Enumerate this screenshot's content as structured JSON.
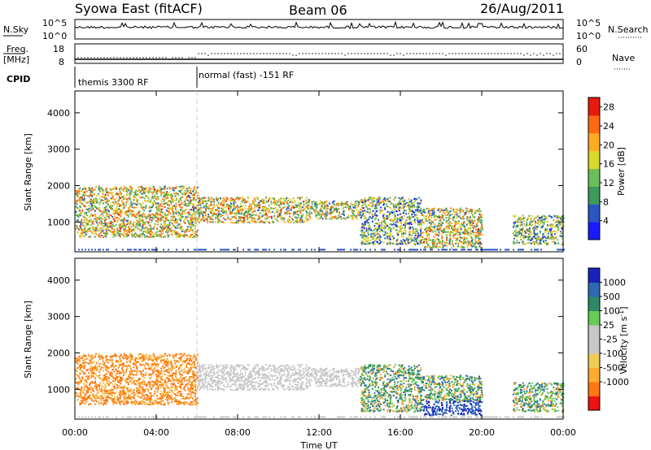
{
  "header": {
    "title": "Syowa East (fitACF)",
    "beam": "Beam 06",
    "date": "26/Aug/2011"
  },
  "strip_nsky": {
    "label": "N.Sky",
    "ticks_left": [
      "10^5",
      "10^0"
    ],
    "ticks_right": [
      "10^5",
      "10^0"
    ],
    "right_label": "N.Search"
  },
  "strip_freq": {
    "label_line1": "Freq.",
    "label_line2": "[MHz]",
    "ticks_left": [
      "18",
      "8"
    ],
    "ticks_right": [
      "60",
      "0"
    ],
    "right_label": "Nave"
  },
  "strip_cpid": {
    "label": "CPID",
    "segment1": "themis 3300 RF",
    "segment2": "normal (fast) -151 RF",
    "change_time_hours": 6.0
  },
  "colors": {
    "power_scale": [
      "#1a1aff",
      "#2a56c4",
      "#3d9a5a",
      "#6bbf5a",
      "#d9d92a",
      "#ffaa22",
      "#ff6a11",
      "#e81a0e"
    ],
    "velocity_scale": [
      "#ee1111",
      "#ff7711",
      "#ffaa33",
      "#eecc55",
      "#c8c8c8",
      "#c8c8c8",
      "#66cc55",
      "#2d8a66",
      "#2e6ab4",
      "#1a22bb"
    ]
  },
  "chart_data": [
    {
      "type": "heatmap",
      "name": "power",
      "ylabel": "Slant Range [km]",
      "xlabel": "",
      "xlim_hours": [
        0,
        24
      ],
      "ylim_km": [
        180,
        4600
      ],
      "yticks": [
        "4000",
        "3000",
        "2000",
        "1000"
      ],
      "ytick_values": [
        4000,
        3000,
        2000,
        1000
      ],
      "colorbar_label": "Power [dB]",
      "colorbar_ticks": [
        "28",
        "24",
        "20",
        "16",
        "12",
        "8",
        "4"
      ],
      "colorbar_tick_values": [
        28,
        24,
        20,
        16,
        12,
        8,
        4
      ],
      "colorbar_range": [
        0,
        30
      ],
      "regions": [
        {
          "t0": 0.0,
          "t1": 6.0,
          "r0": 600,
          "r1": 2000,
          "level": 0.55
        },
        {
          "t0": 6.0,
          "t1": 11.5,
          "r0": 1000,
          "r1": 1700,
          "level": 0.55
        },
        {
          "t0": 11.5,
          "t1": 14.0,
          "r0": 1100,
          "r1": 1600,
          "level": 0.5
        },
        {
          "t0": 14.0,
          "t1": 17.0,
          "r0": 400,
          "r1": 1700,
          "level": 0.4
        },
        {
          "t0": 17.0,
          "t1": 20.0,
          "r0": 300,
          "r1": 1400,
          "level": 0.55
        },
        {
          "t0": 21.5,
          "t1": 24.0,
          "r0": 400,
          "r1": 1200,
          "level": 0.4
        }
      ]
    },
    {
      "type": "heatmap",
      "name": "velocity",
      "ylabel": "Slant Range [km]",
      "xlabel": "Time UT",
      "xlim_hours": [
        0,
        24
      ],
      "ylim_km": [
        180,
        4600
      ],
      "yticks": [
        "4000",
        "3000",
        "2000",
        "1000"
      ],
      "ytick_values": [
        4000,
        3000,
        2000,
        1000
      ],
      "colorbar_label": "Velocity [m s",
      "colorbar_label_sup": "-1",
      "colorbar_label_end": "]",
      "colorbar_ticks": [
        "1000",
        "500",
        "100",
        "25",
        "-25",
        "-100",
        "-500",
        "-1000"
      ],
      "colorbar_tick_index": [
        1,
        2,
        3,
        4,
        5,
        6,
        7,
        8
      ],
      "x_ticks": [
        "00:00",
        "04:00",
        "08:00",
        "12:00",
        "16:00",
        "20:00",
        "00:00"
      ],
      "x_tick_hours": [
        0,
        4,
        8,
        12,
        16,
        20,
        24
      ]
    }
  ]
}
